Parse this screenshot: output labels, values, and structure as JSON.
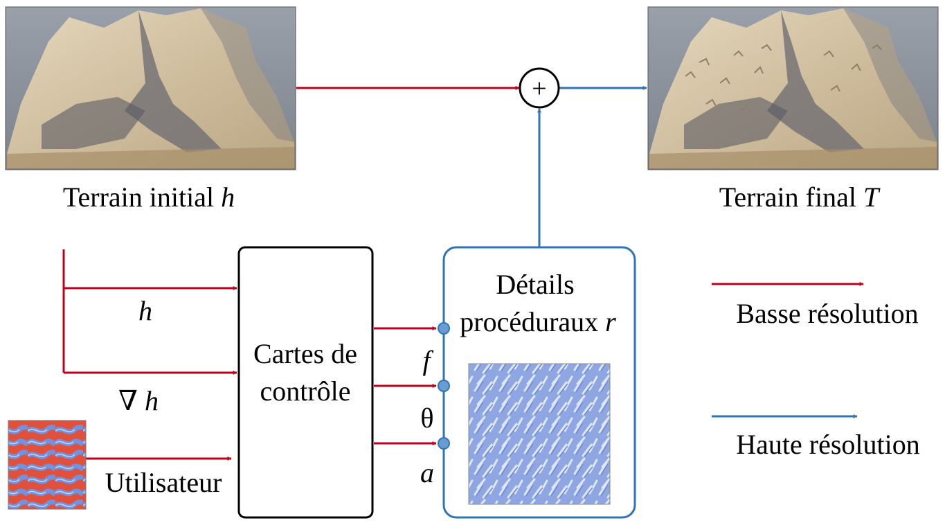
{
  "colors": {
    "low_res": "#c0001a",
    "high_res": "#2e75b6",
    "box_border": "#000000",
    "details_border": "#2e75b6",
    "port_fill": "#6a9bd1",
    "sky": "#8c949f",
    "terrain_light": "#d8c8ac",
    "terrain_shadow": "#5a5c64",
    "detail_map_blue": "#8ea7e3",
    "user_map_red": "#e0503a",
    "user_map_blue": "#6f93e0"
  },
  "top": {
    "initial_label": "Terrain initial ",
    "initial_var": "h",
    "final_label": "Terrain final ",
    "final_var": "T",
    "plus": "+"
  },
  "inputs": {
    "h": "h",
    "grad_symbol": "∇",
    "grad_var": "h",
    "user": "Utilisateur"
  },
  "control_box": {
    "line1": "Cartes de",
    "line2": "contrôle"
  },
  "details_box": {
    "line1": "Détails",
    "line2": "procéduraux ",
    "line2_var": "r"
  },
  "params": {
    "f": "f",
    "theta": "θ",
    "a": "a"
  },
  "legend": {
    "low": "Basse résolution",
    "high": "Haute résolution"
  }
}
